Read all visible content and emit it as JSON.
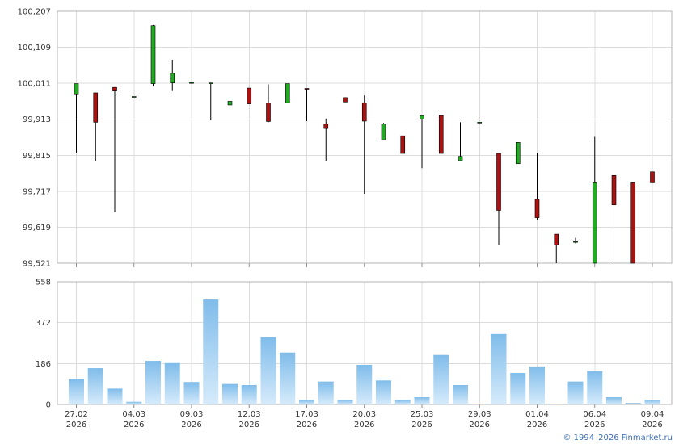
{
  "chart_data": [
    {
      "type": "candlestick",
      "ylim": [
        99.521,
        100.207
      ],
      "y_ticks": [
        "100,207",
        "100,109",
        "100,011",
        "99,913",
        "99,815",
        "99,717",
        "99,619",
        "99,521"
      ],
      "grid": true,
      "up_color": "#22aa22",
      "down_color": "#aa1111",
      "candles": [
        {
          "o": 99.98,
          "h": 100.01,
          "l": 99.82,
          "c": 100.01
        },
        {
          "o": 99.985,
          "h": 99.985,
          "l": 99.8,
          "c": 99.905
        },
        {
          "o": 100.0,
          "h": 100.0,
          "l": 99.66,
          "c": 99.99
        },
        {
          "o": 99.975,
          "h": 99.975,
          "l": 99.975,
          "c": 99.975
        },
        {
          "o": 100.01,
          "h": 100.17,
          "l": 100.003,
          "c": 100.168
        },
        {
          "o": 100.012,
          "h": 100.075,
          "l": 99.99,
          "c": 100.038
        },
        {
          "o": 100.013,
          "h": 100.013,
          "l": 100.013,
          "c": 100.013
        },
        {
          "o": 100.012,
          "h": 100.012,
          "l": 99.91,
          "c": 100.012
        },
        {
          "o": 99.952,
          "h": 99.962,
          "l": 99.952,
          "c": 99.962
        },
        {
          "o": 99.998,
          "h": 99.998,
          "l": 99.955,
          "c": 99.955
        },
        {
          "o": 99.957,
          "h": 100.008,
          "l": 99.905,
          "c": 99.907
        },
        {
          "o": 99.958,
          "h": 100.01,
          "l": 99.958,
          "c": 100.01
        },
        {
          "o": 99.997,
          "h": 99.997,
          "l": 99.908,
          "c": 99.995
        },
        {
          "o": 99.9,
          "h": 99.915,
          "l": 99.8,
          "c": 99.888
        },
        {
          "o": 99.972,
          "h": 99.972,
          "l": 99.96,
          "c": 99.96
        },
        {
          "o": 99.958,
          "h": 99.978,
          "l": 99.71,
          "c": 99.908
        },
        {
          "o": 99.857,
          "h": 99.903,
          "l": 99.857,
          "c": 99.9
        },
        {
          "o": 99.868,
          "h": 99.868,
          "l": 99.82,
          "c": 99.82
        },
        {
          "o": 99.913,
          "h": 99.923,
          "l": 99.78,
          "c": 99.923
        },
        {
          "o": 99.923,
          "h": 99.923,
          "l": 99.82,
          "c": 99.82
        },
        {
          "o": 99.8,
          "h": 99.905,
          "l": 99.8,
          "c": 99.812
        },
        {
          "o": 99.905,
          "h": 99.905,
          "l": 99.905,
          "c": 99.905
        },
        {
          "o": 99.82,
          "h": 99.82,
          "l": 99.57,
          "c": 99.665
        },
        {
          "o": 99.792,
          "h": 99.85,
          "l": 99.792,
          "c": 99.85
        },
        {
          "o": 99.695,
          "h": 99.82,
          "l": 99.64,
          "c": 99.645
        },
        {
          "o": 99.6,
          "h": 99.6,
          "l": 99.521,
          "c": 99.57
        },
        {
          "o": 99.58,
          "h": 99.59,
          "l": 99.575,
          "c": 99.58
        },
        {
          "o": 99.521,
          "h": 99.865,
          "l": 99.521,
          "c": 99.74
        },
        {
          "o": 99.76,
          "h": 99.76,
          "l": 99.521,
          "c": 99.68
        },
        {
          "o": 99.74,
          "h": 99.74,
          "l": 99.521,
          "c": 99.521
        },
        {
          "o": 99.77,
          "h": 99.77,
          "l": 99.74,
          "c": 99.74
        }
      ]
    },
    {
      "type": "bar",
      "ylim": [
        0,
        558
      ],
      "y_ticks": [
        "558",
        "372",
        "186",
        "0"
      ],
      "grid": true,
      "bar_color_top": "#7fbcea",
      "bar_color_bottom": "#d6ebfb",
      "values": [
        115,
        165,
        72,
        12,
        198,
        188,
        102,
        477,
        93,
        88,
        306,
        236,
        20,
        104,
        20,
        180,
        109,
        20,
        33,
        225,
        88,
        3,
        320,
        143,
        173,
        3,
        104,
        152,
        33,
        7,
        22
      ],
      "x_ticks": [
        {
          "label": "27.02",
          "year": "2026",
          "index": 0
        },
        {
          "label": "04.03",
          "year": "2026",
          "index": 3
        },
        {
          "label": "09.03",
          "year": "2026",
          "index": 6
        },
        {
          "label": "12.03",
          "year": "2026",
          "index": 9
        },
        {
          "label": "17.03",
          "year": "2026",
          "index": 12
        },
        {
          "label": "20.03",
          "year": "2026",
          "index": 15
        },
        {
          "label": "25.03",
          "year": "2026",
          "index": 18
        },
        {
          "label": "29.03",
          "year": "2026",
          "index": 21
        },
        {
          "label": "01.04",
          "year": "2026",
          "index": 24
        },
        {
          "label": "06.04",
          "year": "2026",
          "index": 27
        },
        {
          "label": "09.04",
          "year": "2026",
          "index": 30
        }
      ]
    }
  ],
  "credit": "© 1994–2026 Finmarket.ru"
}
